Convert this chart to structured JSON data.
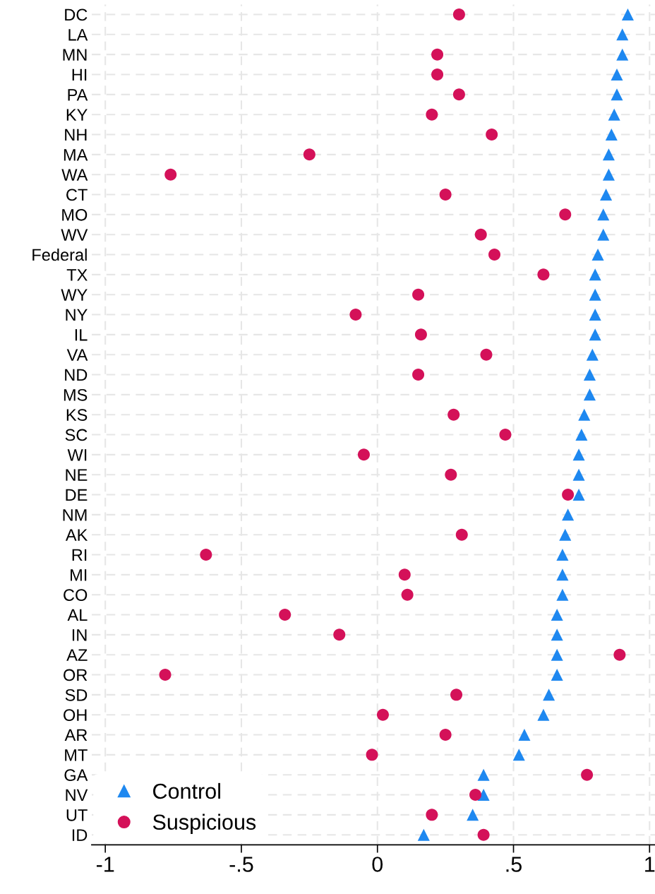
{
  "chart_data": {
    "type": "scatter",
    "categories": [
      "DC",
      "LA",
      "MN",
      "HI",
      "PA",
      "KY",
      "NH",
      "MA",
      "WA",
      "CT",
      "MO",
      "WV",
      "Federal",
      "TX",
      "WY",
      "NY",
      "IL",
      "VA",
      "ND",
      "MS",
      "KS",
      "SC",
      "WI",
      "NE",
      "DE",
      "NM",
      "AK",
      "RI",
      "MI",
      "CO",
      "AL",
      "IN",
      "AZ",
      "OR",
      "SD",
      "OH",
      "AR",
      "MT",
      "GA",
      "NV",
      "UT",
      "ID"
    ],
    "orientation": "horizontal",
    "series": [
      {
        "name": "Control",
        "color": "#1e88f0",
        "marker": "triangle",
        "values": [
          0.92,
          0.9,
          0.9,
          0.88,
          0.88,
          0.87,
          0.86,
          0.85,
          0.85,
          0.84,
          0.83,
          0.83,
          0.81,
          0.8,
          0.8,
          0.8,
          0.8,
          0.79,
          0.78,
          0.78,
          0.76,
          0.75,
          0.74,
          0.74,
          0.74,
          0.7,
          0.69,
          0.68,
          0.68,
          0.68,
          0.66,
          0.66,
          0.66,
          0.66,
          0.63,
          0.61,
          0.54,
          0.52,
          0.39,
          0.39,
          0.35,
          0.17
        ]
      },
      {
        "name": "Suspicious",
        "color": "#d41159",
        "marker": "circle",
        "values": [
          0.3,
          null,
          0.22,
          0.22,
          0.3,
          0.2,
          0.42,
          -0.25,
          -0.76,
          0.25,
          0.69,
          0.38,
          0.43,
          0.61,
          0.15,
          -0.08,
          0.16,
          0.4,
          0.15,
          null,
          0.28,
          0.47,
          -0.05,
          0.27,
          0.7,
          null,
          0.31,
          -0.63,
          0.1,
          0.11,
          -0.34,
          -0.14,
          0.89,
          -0.78,
          0.29,
          0.02,
          0.25,
          -0.02,
          0.77,
          0.36,
          0.2,
          0.39
        ]
      }
    ],
    "xlim": [
      -1.05,
      1.02
    ],
    "xticks": [
      {
        "value": -1,
        "label": "-1"
      },
      {
        "value": -0.5,
        "label": "-.5"
      },
      0,
      {
        "value": 0.5,
        "label": ".5"
      },
      1
    ],
    "grid": true,
    "legend": "bottom left"
  }
}
